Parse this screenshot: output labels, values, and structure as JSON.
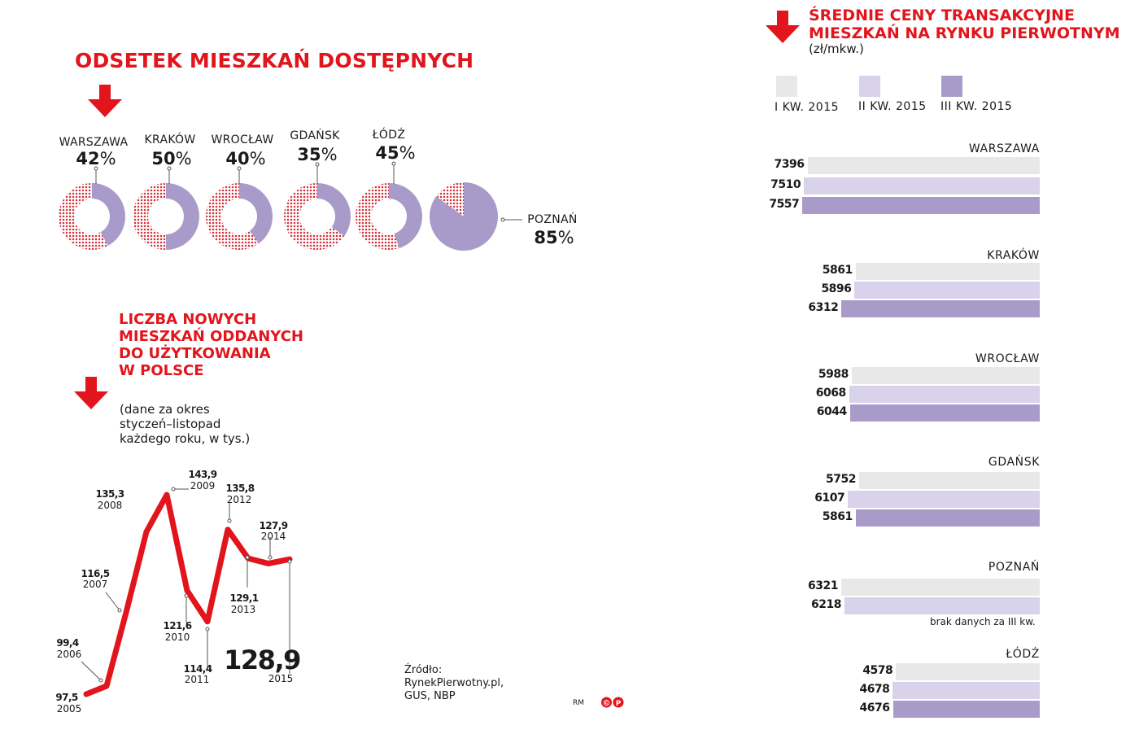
{
  "colors": {
    "accent": "#e2141c",
    "q1": "#e8e8e9",
    "q2": "#d8d2ea",
    "q3": "#a99bc9",
    "donut_fill": "#a99bc9",
    "dot": "#d6303a"
  },
  "donuts": {
    "title": "ODSETEK MIESZKAŃ DOSTĘPNYCH",
    "percent_symbol": "%",
    "items": [
      {
        "city": "WARSZAWA",
        "value": 42,
        "pct": "42"
      },
      {
        "city": "KRAKÓW",
        "value": 50,
        "pct": "50"
      },
      {
        "city": "WROCŁAW",
        "value": 40,
        "pct": "40"
      },
      {
        "city": "GDAŃSK",
        "value": 35,
        "pct": "35"
      },
      {
        "city": "ŁÓDŹ",
        "value": 45,
        "pct": "45"
      },
      {
        "city": "POZNAŃ",
        "value": 85,
        "pct": "85"
      }
    ]
  },
  "line": {
    "title_lines": [
      "LICZBA NOWYCH",
      "MIESZKAŃ ODDANYCH",
      "DO UŻYTKOWANIA",
      "W POLSCE"
    ],
    "subtitle_lines": [
      "(dane za okres",
      "styczeń–listopad",
      "każdego roku, w tys.)"
    ]
  },
  "bars": {
    "title_lines": [
      "ŚREDNIE CENY TRANSAKCYJNE",
      "MIESZKAŃ NA RYNKU PIERWOTNYM"
    ],
    "unit": "(zł/mkw.)",
    "legend": [
      "I KW. 2015",
      "II KW. 2015",
      "III KW. 2015"
    ],
    "no_data_note": "brak danych za III kw."
  },
  "source": {
    "label": "Źródło:",
    "lines": [
      "RynekPierwotny.pl,",
      "GUS, NBP"
    ]
  },
  "credit": "RM",
  "chart_data": [
    {
      "type": "pie",
      "title": "ODSETEK MIESZKAŃ DOSTĘPNYCH",
      "categories": [
        "WARSZAWA",
        "KRAKÓW",
        "WROCŁAW",
        "GDAŃSK",
        "ŁÓDŹ",
        "POZNAŃ"
      ],
      "values": [
        42,
        50,
        40,
        35,
        45,
        85
      ],
      "unit": "%"
    },
    {
      "type": "line",
      "title": "LICZBA NOWYCH MIESZKAŃ ODDANYCH DO UŻYTKOWANIA W POLSCE",
      "x": [
        "2005",
        "2006",
        "2007",
        "2008",
        "2009",
        "2010",
        "2011",
        "2012",
        "2013",
        "2014",
        "2015"
      ],
      "values": [
        97.5,
        99.4,
        116.5,
        135.3,
        143.9,
        121.6,
        114.4,
        135.8,
        129.1,
        127.9,
        128.9
      ],
      "labels": [
        "97,5",
        "99,4",
        "116,5",
        "135,3",
        "143,9",
        "121,6",
        "114,4",
        "135,8",
        "129,1",
        "127,9",
        "128,9"
      ]
    },
    {
      "type": "bar",
      "orientation": "horizontal",
      "title": "ŚREDNIE CENY TRANSAKCYJNE MIESZKAŃ NA RYNKU PIERWOTNYM",
      "unit": "(zł/mkw.)",
      "categories": [
        "WARSZAWA",
        "KRAKÓW",
        "WROCŁAW",
        "GDAŃSK",
        "POZNAŃ",
        "ŁÓDŹ"
      ],
      "series": [
        {
          "name": "I KW. 2015",
          "values": [
            7396,
            5861,
            5988,
            5752,
            6321,
            4578
          ]
        },
        {
          "name": "II KW. 2015",
          "values": [
            7510,
            5896,
            6068,
            6107,
            6218,
            4678
          ]
        },
        {
          "name": "III KW. 2015",
          "values": [
            7557,
            6312,
            6044,
            5861,
            null,
            4676
          ]
        }
      ]
    }
  ]
}
